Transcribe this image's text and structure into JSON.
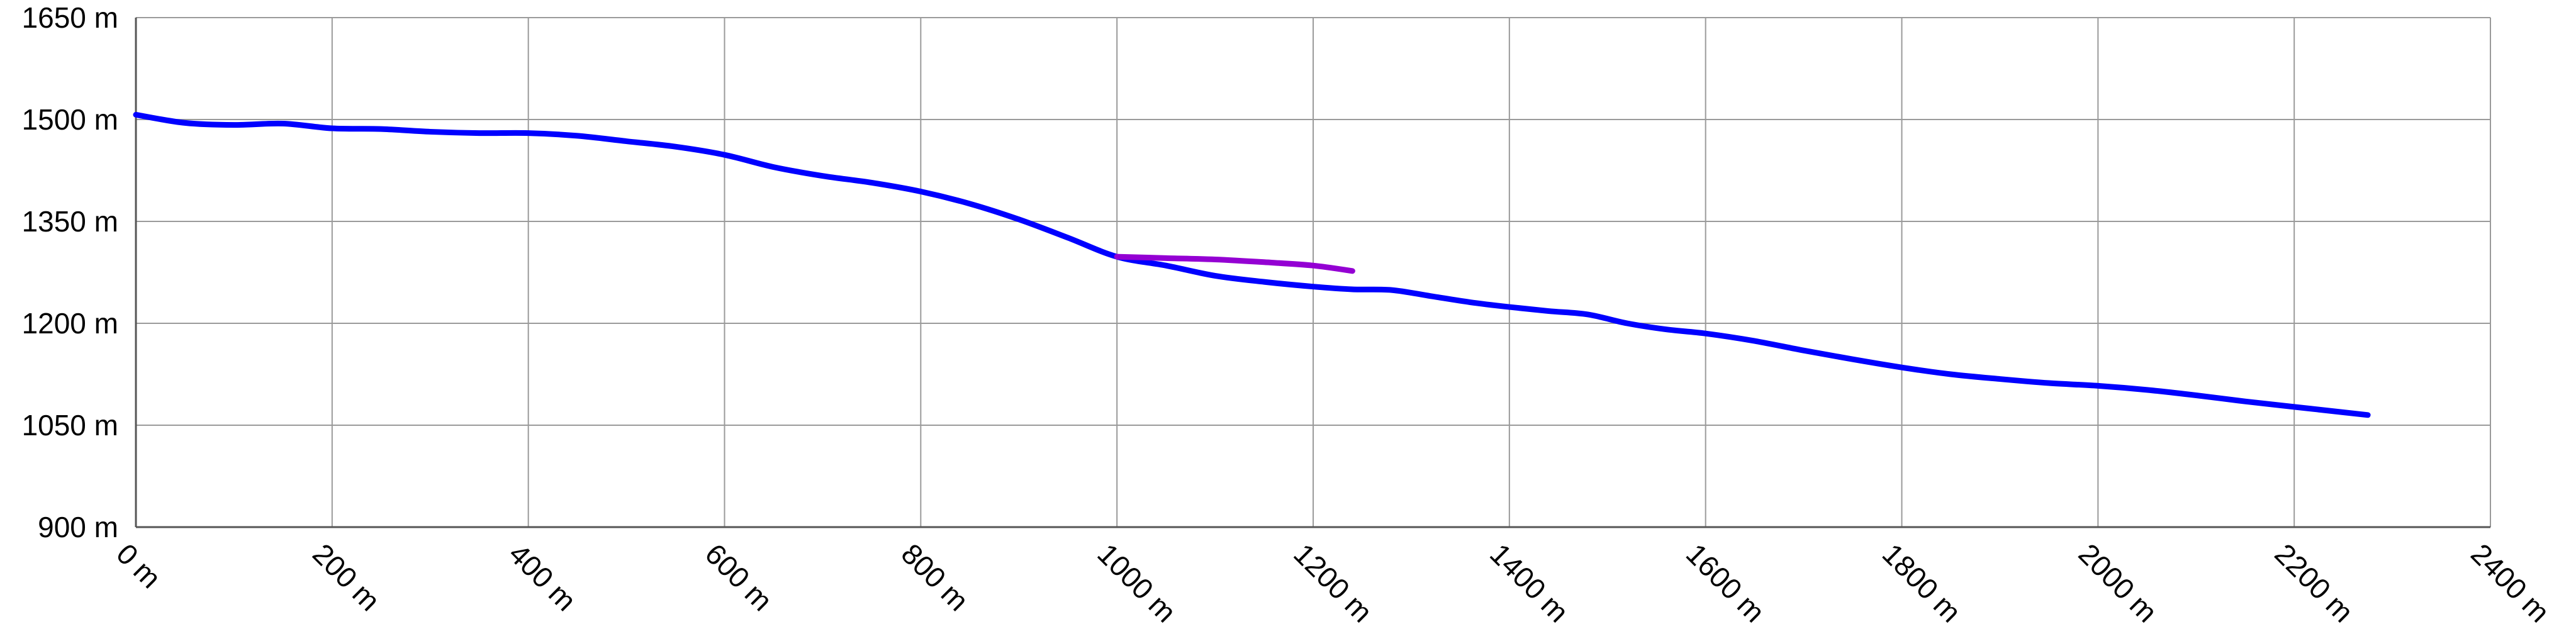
{
  "chart_data": {
    "type": "line",
    "title": "",
    "xlabel": "",
    "ylabel": "",
    "xlim": [
      0,
      2400
    ],
    "ylim": [
      900,
      1650
    ],
    "x_ticks": [
      0,
      200,
      400,
      600,
      800,
      1000,
      1200,
      1400,
      1600,
      1800,
      2000,
      2200,
      2400
    ],
    "y_ticks": [
      900,
      1050,
      1200,
      1350,
      1500,
      1650
    ],
    "x_tick_labels": [
      "0 m",
      "200 m",
      "400 m",
      "600 m",
      "800 m",
      "1000 m",
      "1200 m",
      "1400 m",
      "1600 m",
      "1800 m",
      "2000 m",
      "2200 m",
      "2400 m"
    ],
    "y_tick_labels": [
      "900 m",
      "1050 m",
      "1200 m",
      "1350 m",
      "1500 m",
      "1650 m"
    ],
    "grid": true,
    "legend": "none",
    "series": [
      {
        "color": "#0000ff",
        "points": [
          [
            0,
            1507
          ],
          [
            50,
            1495
          ],
          [
            100,
            1492
          ],
          [
            150,
            1494
          ],
          [
            200,
            1487
          ],
          [
            250,
            1486
          ],
          [
            300,
            1482
          ],
          [
            350,
            1480
          ],
          [
            400,
            1480
          ],
          [
            450,
            1476
          ],
          [
            500,
            1468
          ],
          [
            550,
            1460
          ],
          [
            600,
            1448
          ],
          [
            650,
            1430
          ],
          [
            700,
            1417
          ],
          [
            750,
            1407
          ],
          [
            800,
            1394
          ],
          [
            850,
            1376
          ],
          [
            900,
            1353
          ],
          [
            950,
            1326
          ],
          [
            1000,
            1298
          ],
          [
            1050,
            1285
          ],
          [
            1100,
            1270
          ],
          [
            1150,
            1261
          ],
          [
            1200,
            1254
          ],
          [
            1240,
            1250
          ],
          [
            1280,
            1249
          ],
          [
            1320,
            1240
          ],
          [
            1360,
            1231
          ],
          [
            1400,
            1224
          ],
          [
            1440,
            1218
          ],
          [
            1480,
            1213
          ],
          [
            1520,
            1200
          ],
          [
            1560,
            1191
          ],
          [
            1600,
            1185
          ],
          [
            1650,
            1174
          ],
          [
            1700,
            1160
          ],
          [
            1750,
            1147
          ],
          [
            1800,
            1135
          ],
          [
            1850,
            1125
          ],
          [
            1900,
            1118
          ],
          [
            1950,
            1112
          ],
          [
            2000,
            1108
          ],
          [
            2050,
            1102
          ],
          [
            2100,
            1094
          ],
          [
            2150,
            1085
          ],
          [
            2200,
            1077
          ],
          [
            2250,
            1069
          ],
          [
            2275,
            1065
          ]
        ]
      },
      {
        "color": "#9400d3",
        "points": [
          [
            1000,
            1298
          ],
          [
            1050,
            1296
          ],
          [
            1100,
            1294
          ],
          [
            1150,
            1290
          ],
          [
            1200,
            1285
          ],
          [
            1240,
            1277
          ]
        ]
      }
    ]
  }
}
